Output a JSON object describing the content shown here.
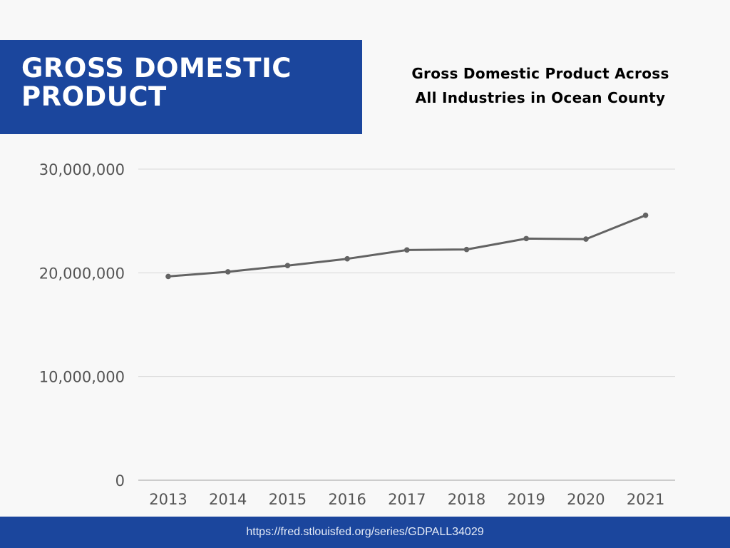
{
  "header": {
    "title_lines": [
      "GROSS DOMESTIC",
      "PRODUCT"
    ],
    "subtitle_lines": [
      "Gross Domestic Product Across",
      "All Industries in Ocean County"
    ]
  },
  "footer": {
    "source": "https://fred.stlouisfed.org/series/GDPALL34029"
  },
  "colors": {
    "banner": "#1b469d",
    "line": "#636363",
    "grid": "#d9d9d9",
    "axis_text": "#555555"
  },
  "chart_data": {
    "type": "line",
    "title": "Gross Domestic Product Across All Industries in Ocean County",
    "x": [
      "2013",
      "2014",
      "2015",
      "2016",
      "2017",
      "2018",
      "2019",
      "2020",
      "2021"
    ],
    "series": [
      {
        "values": [
          19650000,
          20100000,
          20700000,
          21350000,
          22200000,
          22250000,
          23300000,
          23250000,
          25550000
        ]
      }
    ],
    "xlabel": "",
    "ylabel": "",
    "ylim": [
      0,
      30000000
    ],
    "yticks": [
      0,
      10000000,
      20000000,
      30000000
    ],
    "ytick_labels": [
      "0",
      "10,000,000",
      "20,000,000",
      "30,000,000"
    ],
    "grid": true,
    "legend": "none"
  }
}
